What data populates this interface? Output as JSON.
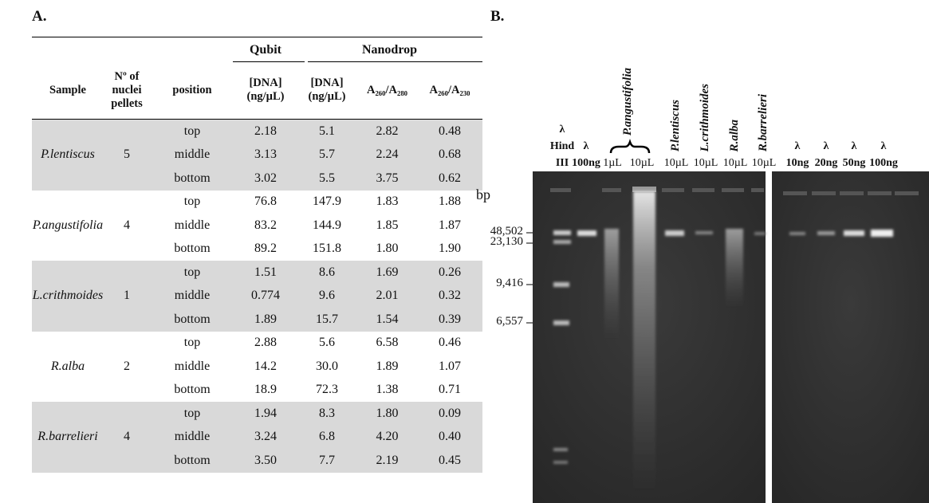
{
  "panel_a": {
    "label": "A.",
    "group_headers": [
      "Qubit",
      "Nanodrop"
    ],
    "columns": [
      "Sample",
      "Nº of\nnuclei\npellets",
      "position",
      "[DNA]\n(ng/µL)",
      "[DNA]\n(ng/µL)",
      "A₂₆₀/A₂₈₀",
      "A₂₆₀/A₂₃₀"
    ],
    "rows": [
      {
        "sample": "P.lentiscus",
        "pellets": "5",
        "measurements": [
          [
            "top",
            "2.18",
            "5.1",
            "2.82",
            "0.48"
          ],
          [
            "middle",
            "3.13",
            "5.7",
            "2.24",
            "0.68"
          ],
          [
            "bottom",
            "3.02",
            "5.5",
            "3.75",
            "0.62"
          ]
        ]
      },
      {
        "sample": "P.angustifolia",
        "pellets": "4",
        "measurements": [
          [
            "top",
            "76.8",
            "147.9",
            "1.83",
            "1.88"
          ],
          [
            "middle",
            "83.2",
            "144.9",
            "1.85",
            "1.87"
          ],
          [
            "bottom",
            "89.2",
            "151.8",
            "1.80",
            "1.90"
          ]
        ]
      },
      {
        "sample": "L.crithmoides",
        "pellets": "1",
        "measurements": [
          [
            "top",
            "1.51",
            "8.6",
            "1.69",
            "0.26"
          ],
          [
            "middle",
            "0.774",
            "9.6",
            "2.01",
            "0.32"
          ],
          [
            "bottom",
            "1.89",
            "15.7",
            "1.54",
            "0.39"
          ]
        ]
      },
      {
        "sample": "R.alba",
        "pellets": "2",
        "measurements": [
          [
            "top",
            "2.88",
            "5.6",
            "6.58",
            "0.46"
          ],
          [
            "middle",
            "14.2",
            "30.0",
            "1.89",
            "1.07"
          ],
          [
            "bottom",
            "18.9",
            "72.3",
            "1.38",
            "0.71"
          ]
        ]
      },
      {
        "sample": "R.barrelieri",
        "pellets": "4",
        "measurements": [
          [
            "top",
            "1.94",
            "8.3",
            "1.80",
            "0.09"
          ],
          [
            "middle",
            "3.24",
            "6.8",
            "4.20",
            "0.40"
          ],
          [
            "bottom",
            "3.50",
            "7.7",
            "2.19",
            "0.45"
          ]
        ]
      }
    ]
  },
  "panel_b": {
    "label": "B.",
    "lanes": [
      "λ\nHind\nIII",
      "λ\n100ng",
      "1µL",
      "10µL",
      "10µL",
      "10µL",
      "10µL",
      "10µL",
      "λ\n10ng",
      "λ\n20ng",
      "λ\n50ng",
      "λ\n100ng"
    ],
    "samples": [
      "P.angustifolia",
      "P.lentiscus",
      "L.crithmoides",
      "R.alba",
      "R.barrelieri"
    ],
    "size_unit": "bp",
    "markers": [
      "48,502",
      "23,130",
      "9,416",
      "6,557"
    ]
  }
}
